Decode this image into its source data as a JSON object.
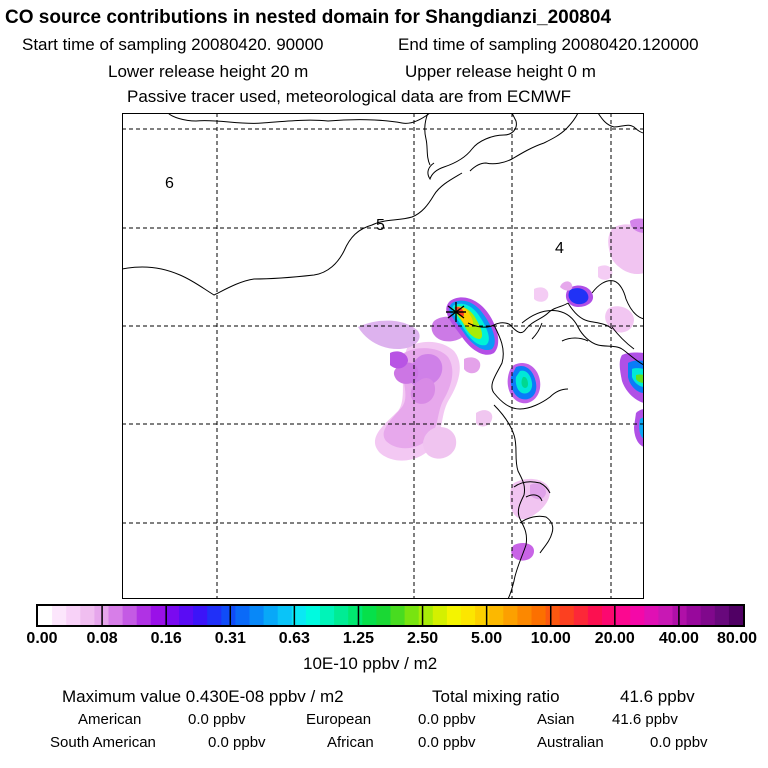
{
  "header": {
    "title": "CO  source contributions in nested domain for Shangdianzi_200804",
    "start_time": "Start time of sampling 20080420. 90000",
    "end_time": "End time of sampling 20080420.120000",
    "lower_release": "Lower release height   20 m",
    "upper_release": "Upper release height    0 m",
    "tracer_note": "Passive tracer used, meteorological data are from ECMWF"
  },
  "map": {
    "region_labels": [
      "6",
      "5",
      "4"
    ],
    "station_marker": "star-cross"
  },
  "colorbar": {
    "ticks": [
      "0.00",
      "0.08",
      "0.16",
      "0.31",
      "0.63",
      "1.25",
      "2.50",
      "5.00",
      "10.00",
      "20.00",
      "40.00",
      "80.00"
    ],
    "unit": "10E-10 ppbv / m2",
    "colors": [
      "#ffffff",
      "#fce6fc",
      "#f8d2f8",
      "#f0bef0",
      "#e6a6ec",
      "#d77ee8",
      "#c45ae4",
      "#b032e4",
      "#9a10e8",
      "#7a0af0",
      "#5a0cf4",
      "#3c14f8",
      "#2030f8",
      "#104cf8",
      "#0a6af8",
      "#0888f8",
      "#08a8f8",
      "#0ac4f8",
      "#0ae8f4",
      "#00fae0",
      "#00f4b8",
      "#00ec94",
      "#00e870",
      "#06e04a",
      "#1ad834",
      "#48dc20",
      "#78e410",
      "#a8ec08",
      "#d4f000",
      "#f4f400",
      "#fce600",
      "#fcd000",
      "#fcb800",
      "#fca000",
      "#fc8800",
      "#fc7000",
      "#fc5810",
      "#fc4020",
      "#fc2838",
      "#fc1050",
      "#fc0870",
      "#fc0890",
      "#f408a8",
      "#e010b4",
      "#c818b4",
      "#b010a8",
      "#98089c",
      "#80088c",
      "#68087c",
      "#500064"
    ]
  },
  "stats": {
    "max_value": "Maximum value  0.430E-08 ppbv / m2",
    "total_mixing": "Total mixing ratio",
    "total_value": "41.6 ppbv",
    "regions": [
      {
        "label": "American",
        "value": "0.0 ppbv"
      },
      {
        "label": "European",
        "value": "0.0 ppbv"
      },
      {
        "label": "Asian",
        "value": "41.6 ppbv"
      },
      {
        "label": "South American",
        "value": "0.0 ppbv"
      },
      {
        "label": "African",
        "value": "0.0 ppbv"
      },
      {
        "label": "Australian",
        "value": "0.0 ppbv"
      }
    ]
  }
}
